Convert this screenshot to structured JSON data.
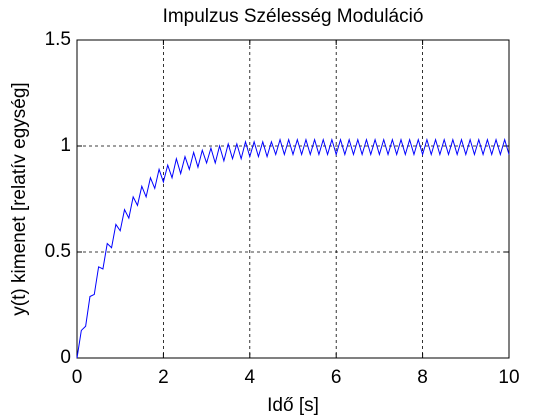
{
  "chart_data": {
    "type": "line",
    "title": "Impulzus Szélesség Moduláció",
    "xlabel": "Idő [s]",
    "ylabel": "y(t) kimenet [relatív egység]",
    "x": [
      0,
      0.1,
      0.2,
      0.3,
      0.4,
      0.5,
      0.6,
      0.7,
      0.8,
      0.9,
      1,
      1.1,
      1.2,
      1.3,
      1.4,
      1.5,
      1.6,
      1.7,
      1.8,
      1.9,
      2,
      2.1,
      2.2,
      2.3,
      2.4,
      2.5,
      2.6,
      2.7,
      2.8,
      2.9,
      3,
      3.1,
      3.2,
      3.3,
      3.4,
      3.5,
      3.6,
      3.7,
      3.8,
      3.9,
      4,
      4.1,
      4.2,
      4.3,
      4.4,
      4.5,
      4.6,
      4.7,
      4.8,
      4.9,
      5,
      5.1,
      5.2,
      5.3,
      5.4,
      5.5,
      5.6,
      5.7,
      5.8,
      5.9,
      6,
      6.1,
      6.2,
      6.3,
      6.4,
      6.5,
      6.6,
      6.7,
      6.8,
      6.9,
      7,
      7.1,
      7.2,
      7.3,
      7.4,
      7.5,
      7.6,
      7.7,
      7.8,
      7.9,
      8,
      8.1,
      8.2,
      8.3,
      8.4,
      8.5,
      8.6,
      8.7,
      8.8,
      8.9,
      9,
      9.1,
      9.2,
      9.3,
      9.4,
      9.5,
      9.6,
      9.7,
      9.8,
      9.9,
      10
    ],
    "values": [
      0,
      0.13,
      0.15,
      0.29,
      0.3,
      0.43,
      0.42,
      0.54,
      0.52,
      0.63,
      0.6,
      0.7,
      0.66,
      0.76,
      0.72,
      0.81,
      0.76,
      0.85,
      0.8,
      0.89,
      0.83,
      0.91,
      0.85,
      0.94,
      0.87,
      0.95,
      0.89,
      0.97,
      0.9,
      0.98,
      0.92,
      0.99,
      0.92,
      1.0,
      0.93,
      1.01,
      0.94,
      1.01,
      0.94,
      1.02,
      0.95,
      1.02,
      0.95,
      1.02,
      0.95,
      1.02,
      0.96,
      1.03,
      0.96,
      1.03,
      0.96,
      1.03,
      0.96,
      1.03,
      0.96,
      1.03,
      0.96,
      1.03,
      0.96,
      1.03,
      0.96,
      1.03,
      0.96,
      1.03,
      0.96,
      1.03,
      0.96,
      1.03,
      0.96,
      1.03,
      0.96,
      1.03,
      0.96,
      1.03,
      0.96,
      1.03,
      0.96,
      1.03,
      0.96,
      1.03,
      0.96,
      1.03,
      0.96,
      1.03,
      0.96,
      1.03,
      0.96,
      1.03,
      0.96,
      1.03,
      0.96,
      1.03,
      0.96,
      1.03,
      0.96,
      1.03,
      0.96,
      1.03,
      0.96,
      1.03,
      0.96
    ],
    "color": "#0000ff",
    "xlim": [
      0,
      10
    ],
    "xticks": [
      0,
      2,
      4,
      6,
      8,
      10
    ],
    "ylim": [
      0,
      1.5
    ],
    "yticks": [
      0,
      0.5,
      1,
      1.5
    ],
    "grid": true
  }
}
